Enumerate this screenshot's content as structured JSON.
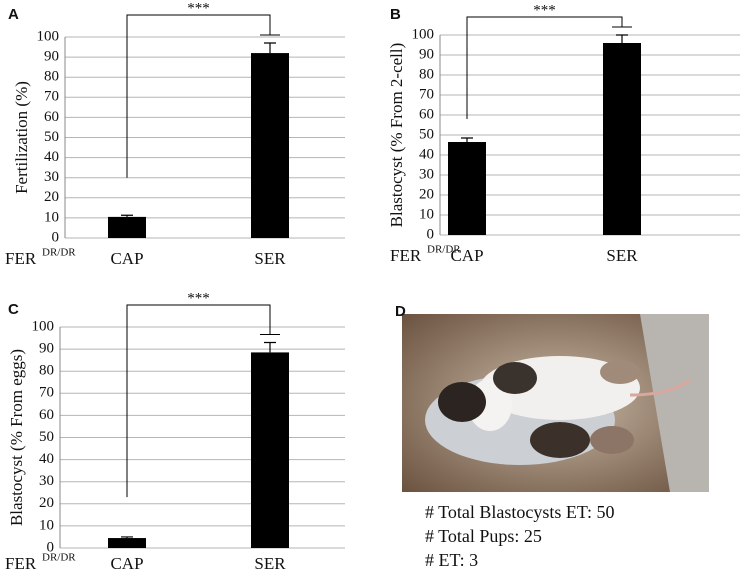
{
  "chart_data": [
    {
      "type": "bar",
      "panel": "A",
      "ylabel": "Fertilization (%)",
      "group_label": "FER",
      "group_label_sup": "DR/DR",
      "categories": [
        "CAP",
        "SER"
      ],
      "values": [
        10.5,
        92
      ],
      "errors": [
        0.8,
        5
      ],
      "color": "#000000",
      "significance": "***",
      "ylim": [
        0,
        100
      ],
      "yticks": [
        0,
        10,
        20,
        30,
        40,
        50,
        60,
        70,
        80,
        90,
        100
      ],
      "grid": true
    },
    {
      "type": "bar",
      "panel": "B",
      "ylabel": "Blastocyst (% From 2-cell)",
      "group_label": "FER",
      "group_label_sup": "DR/DR",
      "categories": [
        "CAP",
        "SER"
      ],
      "values": [
        46.5,
        96
      ],
      "errors": [
        2,
        4
      ],
      "color": "#000000",
      "significance": "***",
      "ylim": [
        0,
        100
      ],
      "yticks": [
        0,
        10,
        20,
        30,
        40,
        50,
        60,
        70,
        80,
        90,
        100
      ],
      "grid": true
    },
    {
      "type": "bar",
      "panel": "C",
      "ylabel": "Blastocyst (% From eggs)",
      "group_label": "FER",
      "group_label_sup": "DR/DR",
      "categories": [
        "CAP",
        "SER"
      ],
      "values": [
        4.5,
        88.5
      ],
      "errors": [
        0.5,
        4.5
      ],
      "color": "#000000",
      "significance": "***",
      "ylim": [
        0,
        100
      ],
      "yticks": [
        0,
        10,
        20,
        30,
        40,
        50,
        60,
        70,
        80,
        90,
        100
      ],
      "grid": true
    }
  ],
  "panel_d": {
    "label": "D",
    "lines": [
      "# Total Blastocysts ET: 50",
      "# Total Pups: 25",
      "# ET: 3"
    ]
  }
}
